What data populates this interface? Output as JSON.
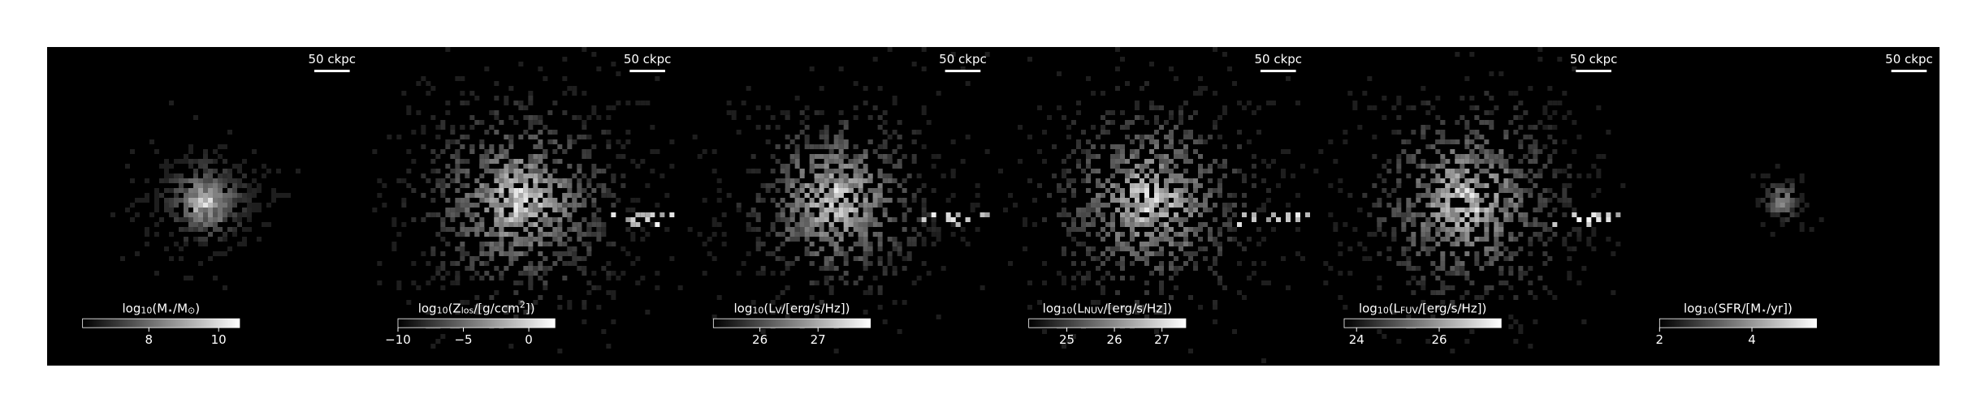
{
  "panels": [
    {
      "scale_bar": "50 ckpc",
      "label": [
        {
          "text": "log"
        },
        {
          "text": "10",
          "sub": true
        },
        {
          "text": "(M"
        },
        {
          "text": "⋆",
          "sub": true
        },
        {
          "text": "/M"
        },
        {
          "text": "⊙",
          "sub": true
        },
        {
          "text": ")"
        }
      ],
      "lim": [
        6.1,
        10.6
      ],
      "ticks": [
        8,
        10
      ]
    },
    {
      "scale_bar": "50 ckpc",
      "label": [
        {
          "text": "log"
        },
        {
          "text": "10",
          "sub": true
        },
        {
          "text": "(Z"
        },
        {
          "text": "los",
          "sub": true
        },
        {
          "text": "/[g/ccm"
        },
        {
          "text": "2",
          "sup": true
        },
        {
          "text": "])"
        }
      ],
      "lim": [
        -10,
        2
      ],
      "ticks": [
        {
          "value": -10,
          "label": "−10"
        },
        {
          "value": -5,
          "label": "−5"
        },
        0
      ]
    },
    {
      "scale_bar": "50 ckpc",
      "label": [
        {
          "text": "log"
        },
        {
          "text": "10",
          "sub": true
        },
        {
          "text": "(L"
        },
        {
          "text": "V",
          "sub": true
        },
        {
          "text": "/[erg/s/Hz])"
        }
      ],
      "lim": [
        25.2,
        27.9
      ],
      "ticks": [
        26,
        27
      ]
    },
    {
      "scale_bar": "50 ckpc",
      "label": [
        {
          "text": "log"
        },
        {
          "text": "10",
          "sub": true
        },
        {
          "text": "(L"
        },
        {
          "text": "NUV",
          "sub": true
        },
        {
          "text": "/[erg/s/Hz])"
        }
      ],
      "lim": [
        24.2,
        27.5
      ],
      "ticks": [
        25,
        26,
        27
      ]
    },
    {
      "scale_bar": "50 ckpc",
      "label": [
        {
          "text": "log"
        },
        {
          "text": "10",
          "sub": true
        },
        {
          "text": "(L"
        },
        {
          "text": "FUV",
          "sub": true
        },
        {
          "text": "/[erg/s/Hz])"
        }
      ],
      "lim": [
        23.7,
        27.5
      ],
      "ticks": [
        24,
        26
      ]
    },
    {
      "scale_bar": "50 ckpc",
      "label": [
        {
          "text": "log"
        },
        {
          "text": "10",
          "sub": true
        },
        {
          "text": "(SFR/[M"
        },
        {
          "text": "⋆",
          "sub": true
        },
        {
          "text": "/yr])"
        }
      ],
      "lim": [
        2.0,
        5.4
      ],
      "ticks": [
        2,
        4
      ]
    }
  ]
}
